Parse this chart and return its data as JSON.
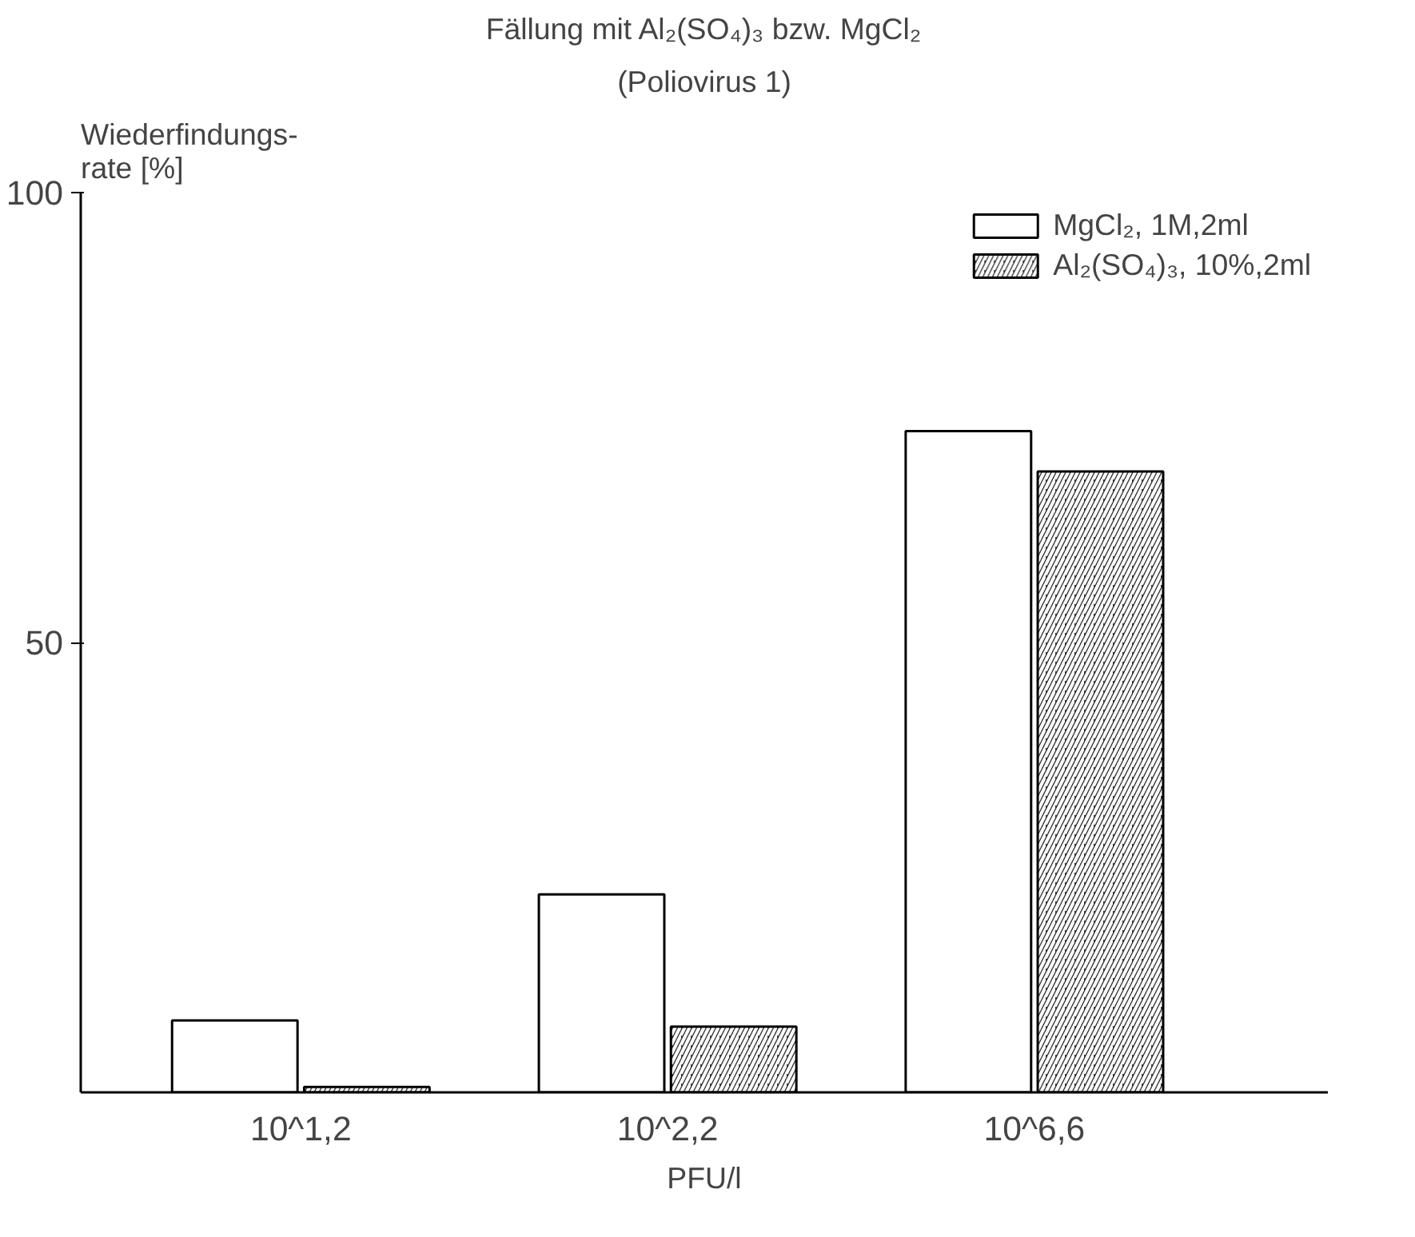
{
  "chart_data": {
    "type": "bar",
    "title": "Fällung mit Al₂(SO₄)₃ bzw. MgCl₂",
    "subtitle": "(Poliovirus 1)",
    "xlabel": "PFU/l",
    "ylabel": "Wiederfindungs-\nrate [%]",
    "categories": [
      "10^1,2",
      "10^2,2",
      "10^6,6"
    ],
    "series": [
      {
        "name": "MgCl₂, 1M,2ml",
        "color": "#ffffff",
        "values": [
          8,
          22,
          73.5
        ]
      },
      {
        "name": "Al₂(SO₄)₃, 10%,2ml",
        "color": "#333333",
        "values": [
          0.6,
          7.3,
          69
        ]
      }
    ],
    "ylim": [
      0,
      100
    ],
    "yticks": [
      50,
      100
    ],
    "grid": false,
    "legend": "top right"
  }
}
